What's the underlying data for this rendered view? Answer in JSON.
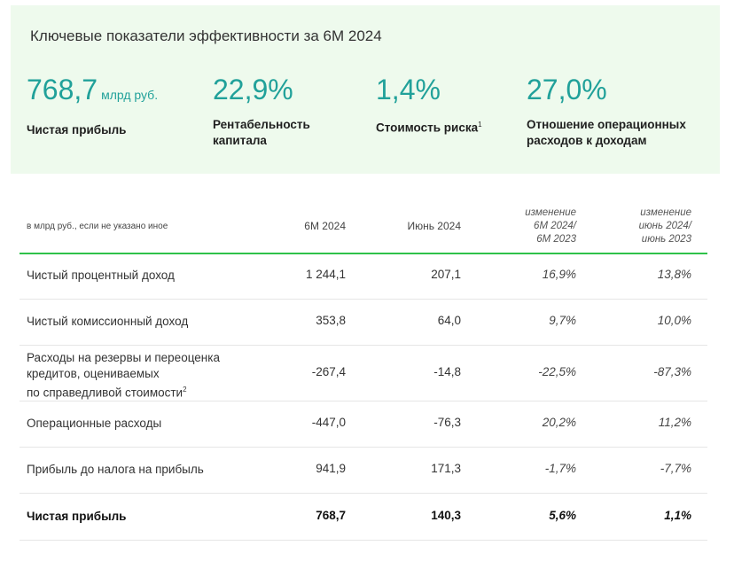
{
  "panel": {
    "title": "Ключевые показатели эффективности за 6М 2024",
    "kpis": [
      {
        "value": "768,7",
        "unit": "млрд руб.",
        "label": "Чистая прибыль",
        "footnote": ""
      },
      {
        "value": "22,9%",
        "unit": "",
        "label": "Рентабельность капитала",
        "footnote": ""
      },
      {
        "value": "1,4%",
        "unit": "",
        "label": "Стоимость риска",
        "footnote": "1"
      },
      {
        "value": "27,0%",
        "unit": "",
        "label": "Отношение операционных расходов к доходам",
        "footnote": ""
      }
    ]
  },
  "table": {
    "note": "в млрд руб., если не указано иное",
    "col_6m": "6М 2024",
    "col_june": "Июнь 2024",
    "col_change_6m_l1": "изменение",
    "col_change_6m_l2": "6М 2024/",
    "col_change_6m_l3": "6М 2023",
    "col_change_june_l1": "изменение",
    "col_change_june_l2": "июнь 2024/",
    "col_change_june_l3": "июнь 2023",
    "rows": [
      {
        "label": "Чистый процентный доход",
        "footnote": "",
        "v6m": "1 244,1",
        "vjune": "207,1",
        "c6m": "16,9%",
        "cjune": "13,8%"
      },
      {
        "label": "Чистый комиссионный доход",
        "footnote": "",
        "v6m": "353,8",
        "vjune": "64,0",
        "c6m": "9,7%",
        "cjune": "10,0%"
      },
      {
        "label_l1": "Расходы на резервы и переоценка",
        "label_l2": "кредитов, оцениваемых",
        "label_l3": "по справедливой стоимости",
        "footnote": "2",
        "v6m": "-267,4",
        "vjune": "-14,8",
        "c6m": "-22,5%",
        "cjune": "-87,3%"
      },
      {
        "label": "Операционные расходы",
        "footnote": "",
        "v6m": "-447,0",
        "vjune": "-76,3",
        "c6m": "20,2%",
        "cjune": "11,2%"
      },
      {
        "label": "Прибыль до налога на прибыль",
        "footnote": "",
        "v6m": "941,9",
        "vjune": "171,3",
        "c6m": "-1,7%",
        "cjune": "-7,7%"
      },
      {
        "label": "Чистая прибыль",
        "footnote": "",
        "v6m": "768,7",
        "vjune": "140,3",
        "c6m": "5,6%",
        "cjune": "1,1%"
      }
    ]
  },
  "colors": {
    "accent": "#21a19a",
    "panel_bg": "#eefaed",
    "rule": "#2fc24a"
  }
}
